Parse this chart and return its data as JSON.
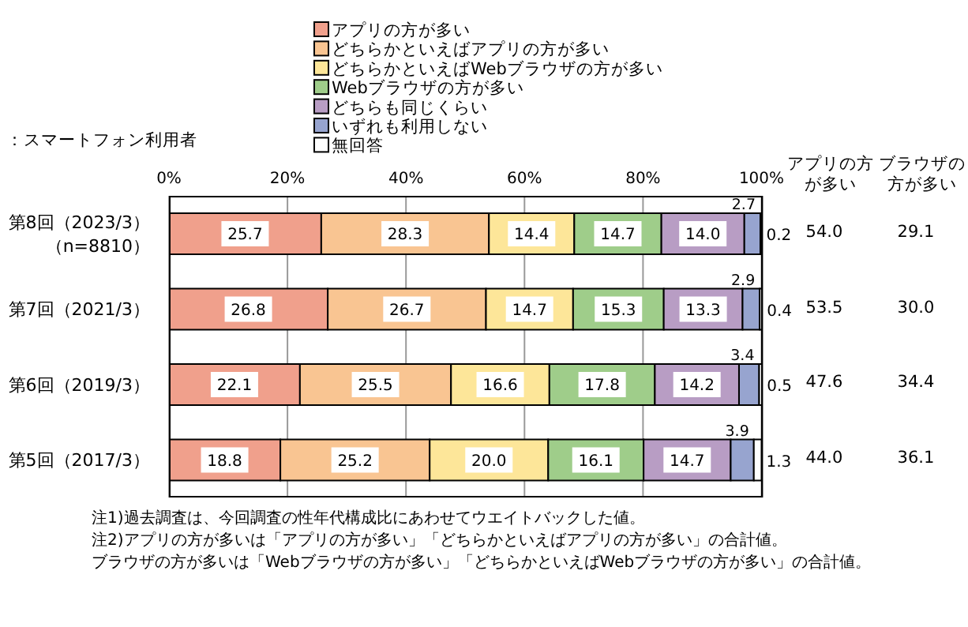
{
  "chart_data": {
    "type": "bar",
    "orientation": "horizontal",
    "stacked": true,
    "subtitle": "：スマートフォン利用者",
    "categories": [
      "第8回（2023/3）（n=8810）",
      "第7回（2021/3）",
      "第6回（2019/3）",
      "第5回（2017/3）"
    ],
    "series": [
      {
        "name": "アプリの方が多い",
        "color": "#f0a08c",
        "values": [
          25.7,
          26.8,
          22.1,
          18.8
        ],
        "value_labels": [
          "25.7",
          "26.8",
          "22.1",
          "18.8"
        ]
      },
      {
        "name": "どちらかといえばアプリの方が多い",
        "color": "#f9c592",
        "values": [
          28.3,
          26.7,
          25.5,
          25.2
        ],
        "value_labels": [
          "28.3",
          "26.7",
          "25.5",
          "25.2"
        ]
      },
      {
        "name": "どちらかといえばWebブラウザの方が多い",
        "color": "#fde699",
        "values": [
          14.4,
          14.7,
          16.6,
          20.0
        ],
        "value_labels": [
          "14.4",
          "14.7",
          "16.6",
          "20.0"
        ]
      },
      {
        "name": "Webブラウザの方が多い",
        "color": "#9fcd8a",
        "values": [
          14.7,
          15.3,
          17.8,
          16.1
        ],
        "value_labels": [
          "14.7",
          "15.3",
          "17.8",
          "16.1"
        ]
      },
      {
        "name": "どちらも同じくらい",
        "color": "#b89dc4",
        "values": [
          14.0,
          13.3,
          14.2,
          14.7
        ],
        "value_labels": [
          "14.0",
          "13.3",
          "14.2",
          "14.7"
        ]
      },
      {
        "name": "いずれも利用しない",
        "color": "#97a4cf",
        "values": [
          2.7,
          2.9,
          3.4,
          3.9
        ],
        "value_labels": [
          "2.7",
          "2.9",
          "3.4",
          "3.9"
        ]
      },
      {
        "name": "無回答",
        "color": "#ffffff",
        "values": [
          0.2,
          0.4,
          0.5,
          1.3
        ],
        "value_labels": [
          "0.2",
          "0.4",
          "0.5",
          "1.3"
        ]
      }
    ],
    "xlim": [
      0,
      100.2
    ],
    "xticks": [
      {
        "value": 0,
        "label": "0%"
      },
      {
        "value": 20,
        "label": "20%"
      },
      {
        "value": 40,
        "label": "40%"
      },
      {
        "value": 60,
        "label": "60%"
      },
      {
        "value": 80,
        "label": "80%"
      },
      {
        "value": 100,
        "label": "100%"
      }
    ],
    "grid": "x",
    "legend": "top",
    "annotations": [
      "アプリの方が多い",
      "54.0",
      "53.5",
      "47.6",
      "44.0",
      "ブラウザの方が多い",
      "29.1",
      "30.0",
      "34.4",
      "36.1",
      "注1)過去調査は、今回調査の性年代構成比にあわせてウエイトバックした値。",
      "注2)アプリの方が多いは「アプリの方が多い」「どちらかといえばアプリの方が多い」の合計値。",
      "ブラウザの方が多いは「Webブラウザの方が多い」「どちらかといえばWebブラウザの方が多い」の合計値。"
    ]
  }
}
